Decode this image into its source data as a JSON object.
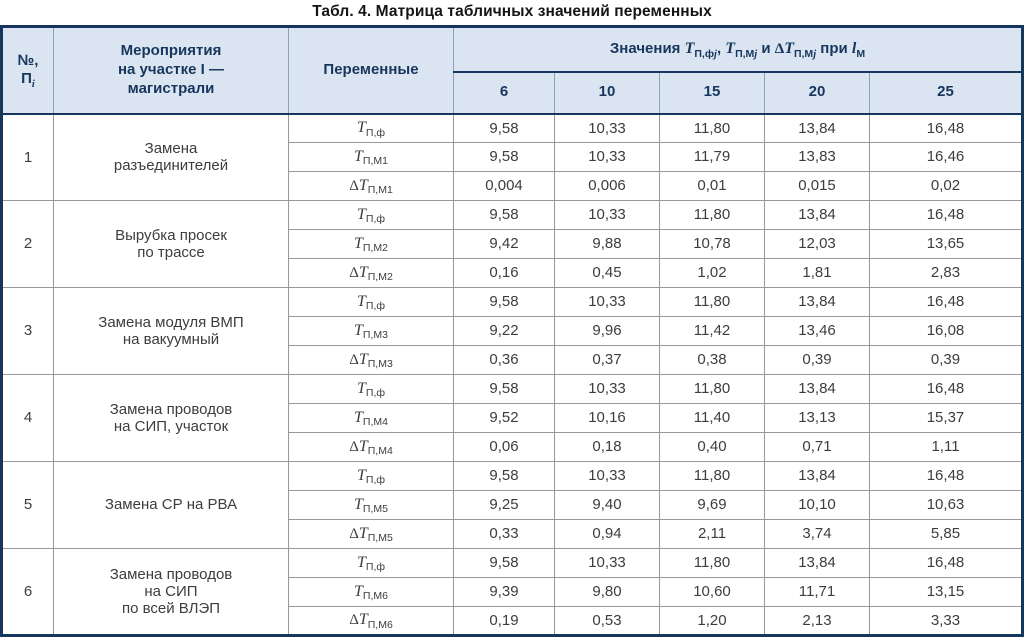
{
  "title": "Табл. 4. Матрица табличных значений переменных",
  "header": {
    "num": {
      "line1": "№,",
      "base": "П",
      "sub": "i"
    },
    "activities": "Мероприятия\nна участке I —\nмагистрали",
    "variables": "Переменные",
    "values_title": [
      {
        "text": "Значения "
      },
      {
        "base": "T",
        "sub": "П,ф",
        "subj": "j"
      },
      {
        "text": ", "
      },
      {
        "base": "T",
        "sub": "П,М",
        "subj": "j"
      },
      {
        "text": " и "
      },
      {
        "delta": true,
        "base": "T",
        "sub": "П,М",
        "subj": "j"
      },
      {
        "text": " при "
      },
      {
        "base": "l",
        "sub": "М"
      }
    ],
    "length_values": [
      "6",
      "10",
      "15",
      "20",
      "25"
    ]
  },
  "groups": [
    {
      "num": "1",
      "activity": "Замена\nразъединителей",
      "rows": [
        {
          "var": {
            "base": "T",
            "sub": "П,ф"
          },
          "values": [
            "9,58",
            "10,33",
            "11,80",
            "13,84",
            "16,48"
          ]
        },
        {
          "var": {
            "base": "T",
            "sub": "П,М1"
          },
          "values": [
            "9,58",
            "10,33",
            "11,79",
            "13,83",
            "16,46"
          ]
        },
        {
          "var": {
            "delta": true,
            "base": "T",
            "sub": "П,М1"
          },
          "values": [
            "0,004",
            "0,006",
            "0,01",
            "0,015",
            "0,02"
          ]
        }
      ]
    },
    {
      "num": "2",
      "activity": "Вырубка просек\nпо трассе",
      "rows": [
        {
          "var": {
            "base": "T",
            "sub": "П,ф"
          },
          "values": [
            "9,58",
            "10,33",
            "11,80",
            "13,84",
            "16,48"
          ]
        },
        {
          "var": {
            "base": "T",
            "sub": "П,М2"
          },
          "values": [
            "9,42",
            "9,88",
            "10,78",
            "12,03",
            "13,65"
          ]
        },
        {
          "var": {
            "delta": true,
            "base": "T",
            "sub": "П,М2"
          },
          "values": [
            "0,16",
            "0,45",
            "1,02",
            "1,81",
            "2,83"
          ]
        }
      ]
    },
    {
      "num": "3",
      "activity": "Замена модуля ВМП\nна вакуумный",
      "rows": [
        {
          "var": {
            "base": "T",
            "sub": "П,ф"
          },
          "values": [
            "9,58",
            "10,33",
            "11,80",
            "13,84",
            "16,48"
          ]
        },
        {
          "var": {
            "base": "T",
            "sub": "П,М3"
          },
          "values": [
            "9,22",
            "9,96",
            "11,42",
            "13,46",
            "16,08"
          ]
        },
        {
          "var": {
            "delta": true,
            "base": "T",
            "sub": "П,М3"
          },
          "values": [
            "0,36",
            "0,37",
            "0,38",
            "0,39",
            "0,39"
          ]
        }
      ]
    },
    {
      "num": "4",
      "activity": "Замена проводов\nна СИП, участок",
      "rows": [
        {
          "var": {
            "base": "T",
            "sub": "П,ф"
          },
          "values": [
            "9,58",
            "10,33",
            "11,80",
            "13,84",
            "16,48"
          ]
        },
        {
          "var": {
            "base": "T",
            "sub": "П,М4"
          },
          "values": [
            "9,52",
            "10,16",
            "11,40",
            "13,13",
            "15,37"
          ]
        },
        {
          "var": {
            "delta": true,
            "base": "T",
            "sub": "П,М4"
          },
          "values": [
            "0,06",
            "0,18",
            "0,40",
            "0,71",
            "1,11"
          ]
        }
      ]
    },
    {
      "num": "5",
      "activity": "Замена СР на РВА",
      "rows": [
        {
          "var": {
            "base": "T",
            "sub": "П,ф"
          },
          "values": [
            "9,58",
            "10,33",
            "11,80",
            "13,84",
            "16,48"
          ]
        },
        {
          "var": {
            "base": "T",
            "sub": "П,М5"
          },
          "values": [
            "9,25",
            "9,40",
            "9,69",
            "10,10",
            "10,63"
          ]
        },
        {
          "var": {
            "delta": true,
            "base": "T",
            "sub": "П,М5"
          },
          "values": [
            "0,33",
            "0,94",
            "2,11",
            "3,74",
            "5,85"
          ]
        }
      ]
    },
    {
      "num": "6",
      "activity": "Замена проводов\nна СИП\nпо всей ВЛЭП",
      "rows": [
        {
          "var": {
            "base": "T",
            "sub": "П,ф"
          },
          "values": [
            "9,58",
            "10,33",
            "11,80",
            "13,84",
            "16,48"
          ]
        },
        {
          "var": {
            "base": "T",
            "sub": "П,М6"
          },
          "values": [
            "9,39",
            "9,80",
            "10,60",
            "11,71",
            "13,15"
          ]
        },
        {
          "var": {
            "delta": true,
            "base": "T",
            "sub": "П,М6"
          },
          "values": [
            "0,19",
            "0,53",
            "1,20",
            "2,13",
            "3,33"
          ]
        }
      ]
    }
  ]
}
